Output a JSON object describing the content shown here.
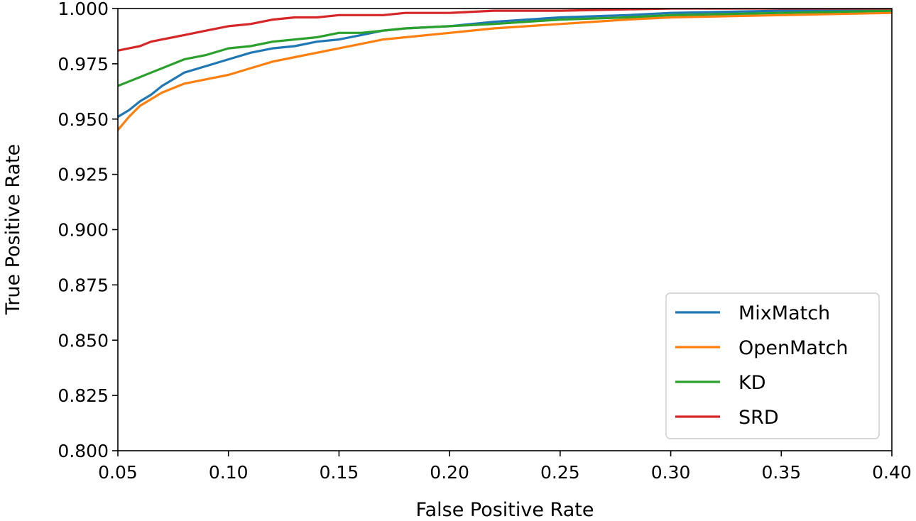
{
  "chart_data": {
    "type": "line",
    "title": "",
    "xlabel": "False Positive Rate",
    "ylabel": "True Positive Rate",
    "xlim": [
      0.05,
      0.4
    ],
    "ylim": [
      0.8,
      1.0
    ],
    "xticks": [
      0.05,
      0.1,
      0.15,
      0.2,
      0.25,
      0.3,
      0.35,
      0.4
    ],
    "xtick_labels": [
      "0.05",
      "0.10",
      "0.15",
      "0.20",
      "0.25",
      "0.30",
      "0.35",
      "0.40"
    ],
    "yticks": [
      0.8,
      0.825,
      0.85,
      0.875,
      0.9,
      0.925,
      0.95,
      0.975,
      1.0
    ],
    "ytick_labels": [
      "0.800",
      "0.825",
      "0.850",
      "0.875",
      "0.900",
      "0.925",
      "0.950",
      "0.975",
      "1.000"
    ],
    "grid": false,
    "legend_position": "lower-right",
    "series": [
      {
        "name": "MixMatch",
        "color": "#1f77b4",
        "x": [
          0.05,
          0.055,
          0.06,
          0.065,
          0.07,
          0.075,
          0.08,
          0.09,
          0.1,
          0.11,
          0.12,
          0.13,
          0.14,
          0.15,
          0.16,
          0.17,
          0.18,
          0.2,
          0.22,
          0.25,
          0.28,
          0.3,
          0.35,
          0.4
        ],
        "y": [
          0.951,
          0.954,
          0.958,
          0.961,
          0.965,
          0.968,
          0.971,
          0.974,
          0.977,
          0.98,
          0.982,
          0.983,
          0.985,
          0.986,
          0.988,
          0.99,
          0.991,
          0.992,
          0.994,
          0.996,
          0.997,
          0.998,
          0.999,
          0.999
        ]
      },
      {
        "name": "OpenMatch",
        "color": "#ff7f0e",
        "x": [
          0.05,
          0.055,
          0.06,
          0.065,
          0.07,
          0.075,
          0.08,
          0.09,
          0.1,
          0.11,
          0.12,
          0.13,
          0.14,
          0.15,
          0.16,
          0.17,
          0.18,
          0.2,
          0.22,
          0.25,
          0.28,
          0.3,
          0.35,
          0.4
        ],
        "y": [
          0.945,
          0.951,
          0.956,
          0.959,
          0.962,
          0.964,
          0.966,
          0.968,
          0.97,
          0.973,
          0.976,
          0.978,
          0.98,
          0.982,
          0.984,
          0.986,
          0.987,
          0.989,
          0.991,
          0.993,
          0.995,
          0.996,
          0.997,
          0.998
        ]
      },
      {
        "name": "KD",
        "color": "#2ca02c",
        "x": [
          0.05,
          0.055,
          0.06,
          0.065,
          0.07,
          0.075,
          0.08,
          0.09,
          0.1,
          0.11,
          0.12,
          0.13,
          0.14,
          0.15,
          0.16,
          0.17,
          0.18,
          0.2,
          0.22,
          0.25,
          0.28,
          0.3,
          0.35,
          0.4
        ],
        "y": [
          0.965,
          0.967,
          0.969,
          0.971,
          0.973,
          0.975,
          0.977,
          0.979,
          0.982,
          0.983,
          0.985,
          0.986,
          0.987,
          0.989,
          0.989,
          0.99,
          0.991,
          0.992,
          0.993,
          0.995,
          0.996,
          0.997,
          0.998,
          0.999
        ]
      },
      {
        "name": "SRD",
        "color": "#d62728",
        "x": [
          0.05,
          0.055,
          0.06,
          0.065,
          0.07,
          0.075,
          0.08,
          0.09,
          0.1,
          0.11,
          0.12,
          0.13,
          0.14,
          0.15,
          0.16,
          0.17,
          0.18,
          0.2,
          0.22,
          0.25,
          0.3,
          0.35,
          0.4
        ],
        "y": [
          0.981,
          0.982,
          0.983,
          0.985,
          0.986,
          0.987,
          0.988,
          0.99,
          0.992,
          0.993,
          0.995,
          0.996,
          0.996,
          0.997,
          0.997,
          0.997,
          0.998,
          0.998,
          0.999,
          0.999,
          1.0,
          1.0,
          1.0
        ]
      }
    ]
  }
}
